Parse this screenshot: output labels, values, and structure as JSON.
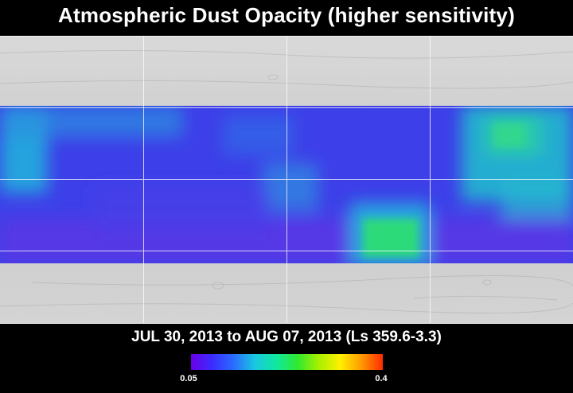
{
  "title": "Atmospheric Dust Opacity (higher sensitivity)",
  "date_range": "JUL 30, 2013 to AUG 07, 2013 (Ls 359.6-3.3)",
  "colorbar": {
    "min_label": "0.05",
    "max_label": "0.4",
    "colors": [
      "#6a00e8",
      "#3b2cff",
      "#2a6cff",
      "#18c8e0",
      "#10e8a0",
      "#30e830",
      "#a8f000",
      "#fff000",
      "#ff9a00",
      "#ff2a00"
    ]
  },
  "map": {
    "colors": {
      "terrain": "#cfcfcf",
      "grid": "#ffffff",
      "low": "#5a36e6",
      "mid": "#3454ee",
      "cyan": "#22b4dc",
      "green": "#2ee070"
    }
  }
}
